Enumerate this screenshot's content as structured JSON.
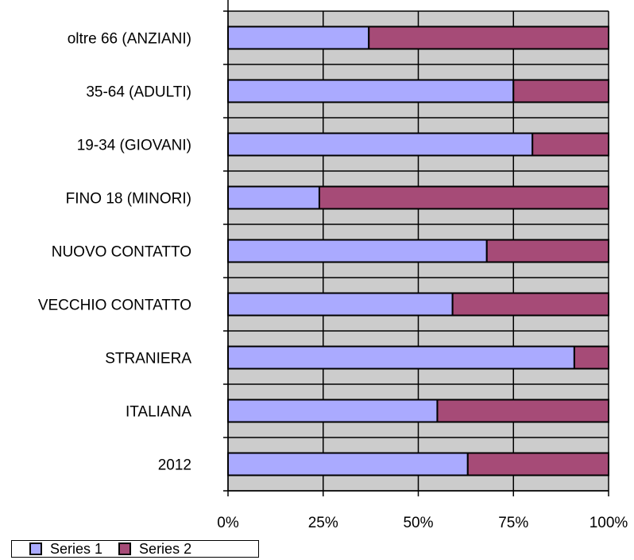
{
  "chart_data": {
    "type": "bar",
    "orientation": "horizontal",
    "stacked": "percent",
    "categories": [
      "oltre 66 (ANZIANI)",
      "35-64 (ADULTI)",
      "19-34 (GIOVANI)",
      "FINO 18 (MINORI)",
      "NUOVO CONTATTO",
      "VECCHIO CONTATTO",
      "STRANIERA",
      "ITALIANA",
      "2012"
    ],
    "series": [
      {
        "name": "Series 1",
        "color": "#aaaaff",
        "values": [
          37,
          75,
          80,
          24,
          68,
          59,
          91,
          55,
          63
        ]
      },
      {
        "name": "Series 2",
        "color": "#a64b77",
        "values": [
          63,
          25,
          20,
          76,
          32,
          41,
          9,
          45,
          37
        ]
      }
    ],
    "x_ticks": [
      "0%",
      "25%",
      "50%",
      "75%",
      "100%"
    ],
    "xlim": [
      0,
      100
    ],
    "grid": true,
    "plot_background": "#cccccc",
    "legend_position": "bottom-left"
  }
}
